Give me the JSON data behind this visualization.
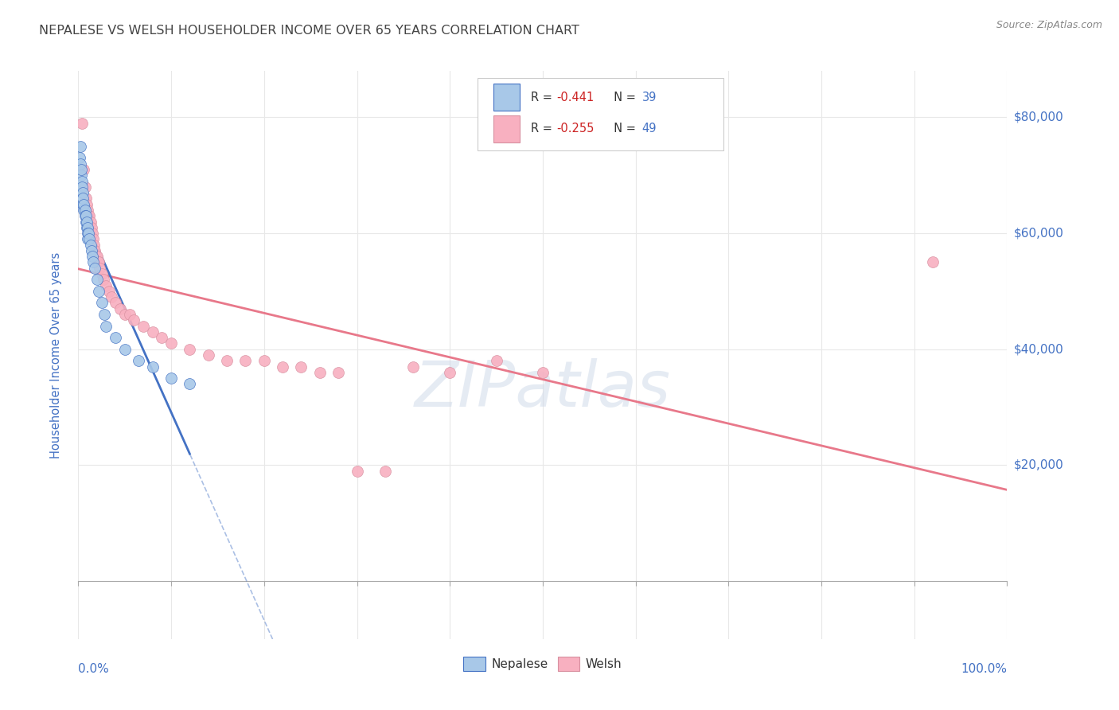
{
  "title": "NEPALESE VS WELSH HOUSEHOLDER INCOME OVER 65 YEARS CORRELATION CHART",
  "source": "Source: ZipAtlas.com",
  "ylabel": "Householder Income Over 65 years",
  "watermark": "ZIPatlas",
  "nepalese_R": -0.441,
  "nepalese_N": 39,
  "welsh_R": -0.255,
  "welsh_N": 49,
  "nepalese_color": "#a8c8e8",
  "welsh_color": "#f8b0c0",
  "nepalese_line_color": "#4472c4",
  "welsh_line_color": "#e8788a",
  "title_color": "#444444",
  "grid_color": "#e8e8e8",
  "nepalese_x": [
    0.001,
    0.002,
    0.002,
    0.003,
    0.003,
    0.004,
    0.004,
    0.005,
    0.005,
    0.005,
    0.006,
    0.006,
    0.007,
    0.007,
    0.008,
    0.008,
    0.009,
    0.009,
    0.01,
    0.01,
    0.01,
    0.011,
    0.012,
    0.013,
    0.014,
    0.015,
    0.016,
    0.018,
    0.02,
    0.022,
    0.025,
    0.028,
    0.03,
    0.04,
    0.05,
    0.065,
    0.08,
    0.1,
    0.12
  ],
  "nepalese_y": [
    73000,
    75000,
    72000,
    70000,
    71000,
    69000,
    68000,
    67000,
    65000,
    66000,
    64000,
    65000,
    64000,
    63000,
    62000,
    63000,
    61000,
    62000,
    61000,
    60000,
    59000,
    60000,
    59000,
    58000,
    57000,
    56000,
    55000,
    54000,
    52000,
    50000,
    48000,
    46000,
    44000,
    42000,
    40000,
    38000,
    37000,
    35000,
    34000
  ],
  "welsh_x": [
    0.004,
    0.006,
    0.007,
    0.008,
    0.009,
    0.01,
    0.011,
    0.012,
    0.013,
    0.014,
    0.015,
    0.016,
    0.017,
    0.018,
    0.019,
    0.02,
    0.021,
    0.022,
    0.023,
    0.025,
    0.027,
    0.03,
    0.033,
    0.036,
    0.04,
    0.045,
    0.05,
    0.055,
    0.06,
    0.07,
    0.08,
    0.09,
    0.1,
    0.12,
    0.14,
    0.16,
    0.18,
    0.2,
    0.22,
    0.24,
    0.26,
    0.28,
    0.3,
    0.33,
    0.36,
    0.4,
    0.45,
    0.5,
    0.92
  ],
  "welsh_y": [
    79000,
    71000,
    68000,
    66000,
    65000,
    64000,
    63000,
    63000,
    62000,
    61000,
    60000,
    59000,
    58000,
    57000,
    56000,
    56000,
    55000,
    55000,
    54000,
    53000,
    52000,
    51000,
    50000,
    49000,
    48000,
    47000,
    46000,
    46000,
    45000,
    44000,
    43000,
    42000,
    41000,
    40000,
    39000,
    38000,
    38000,
    38000,
    37000,
    37000,
    36000,
    36000,
    19000,
    19000,
    37000,
    36000,
    38000,
    36000,
    55000
  ],
  "xlim_min": 0.0,
  "xlim_max": 1.0,
  "ylim_min": -10000,
  "ylim_max": 88000,
  "ytick_positions": [
    0,
    20000,
    40000,
    60000,
    80000
  ],
  "ytick_labels": [
    "",
    "$20,000",
    "$40,000",
    "$60,000",
    "$80,000"
  ],
  "xtick_positions": [
    0.0,
    0.1,
    0.2,
    0.3,
    0.4,
    0.5,
    0.6,
    0.7,
    0.8,
    0.9,
    1.0
  ],
  "background_color": "#ffffff",
  "legend_r_color": "#cc0000",
  "legend_n_color": "#4472c4"
}
